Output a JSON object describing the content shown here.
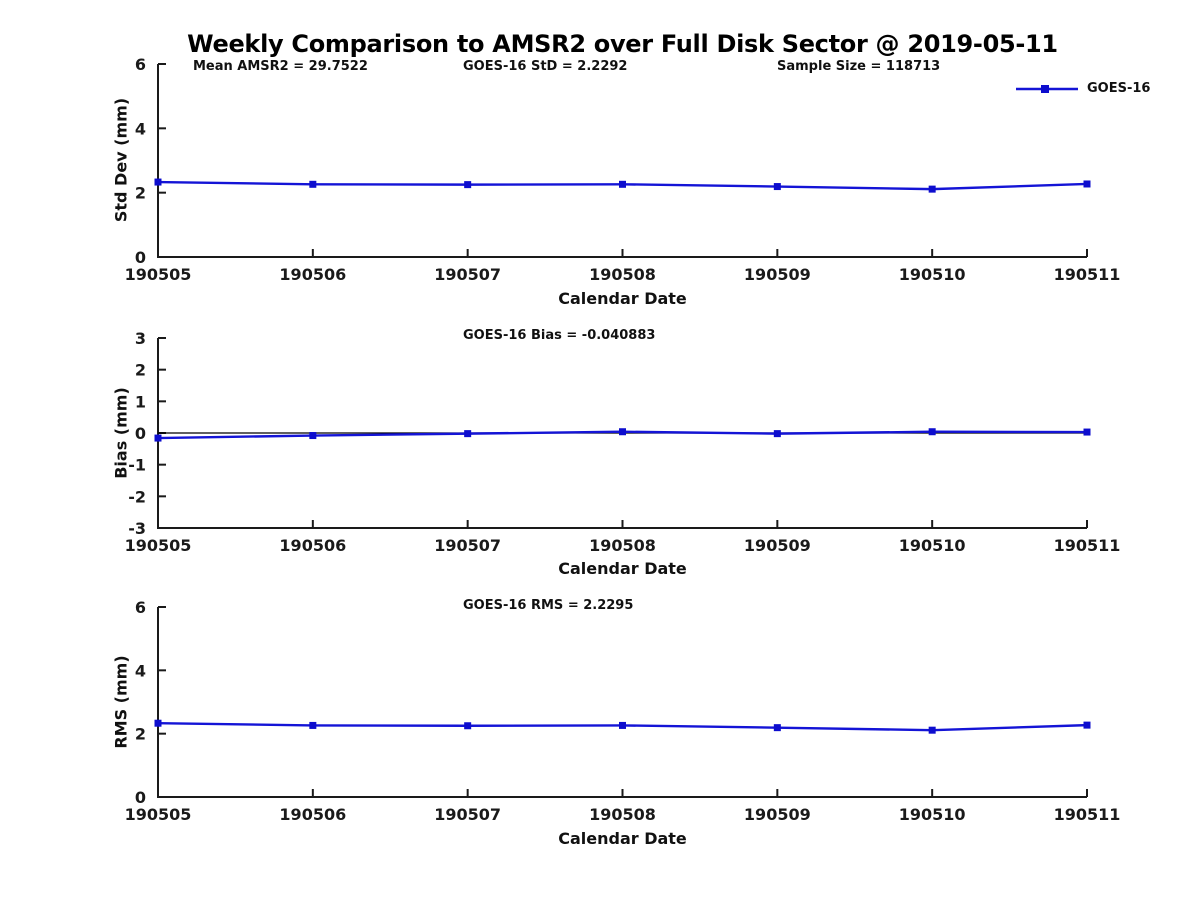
{
  "title": "Weekly Comparison to AMSR2 over Full Disk Sector @ 2019-05-11",
  "colors": {
    "line": "#1414D6",
    "marker": "#0D0DCE",
    "axis": "#1a1a1a",
    "text": "#111111",
    "zero_line": "#000000",
    "background": "#ffffff"
  },
  "legend": {
    "label": "GOES-16",
    "position": "top-right"
  },
  "chart_data": [
    {
      "type": "line",
      "title": "Weekly Comparison to AMSR2 over Full Disk Sector @ 2019-05-11",
      "annotations": [
        "Mean AMSR2 = 29.7522",
        "GOES-16 StD = 2.2292",
        "Sample Size = 118713"
      ],
      "categories": [
        "190505",
        "190506",
        "190507",
        "190508",
        "190509",
        "190510",
        "190511"
      ],
      "series": [
        {
          "name": "GOES-16",
          "values": [
            2.33,
            2.26,
            2.25,
            2.26,
            2.19,
            2.11,
            2.27
          ]
        }
      ],
      "xlabel": "Calendar Date",
      "ylabel": "Std Dev (mm)",
      "ylim": [
        0,
        6
      ],
      "yticks": [
        0,
        2,
        4,
        6
      ],
      "grid": false,
      "zero_line": false,
      "legend_label": "GOES-16"
    },
    {
      "type": "line",
      "subtitle": "GOES-16 Bias  = -0.040883",
      "categories": [
        "190505",
        "190506",
        "190507",
        "190508",
        "190509",
        "190510",
        "190511"
      ],
      "series": [
        {
          "name": "GOES-16",
          "values": [
            -0.16,
            -0.08,
            -0.02,
            0.04,
            -0.02,
            0.04,
            0.03
          ]
        }
      ],
      "xlabel": "Calendar Date",
      "ylabel": "Bias (mm)",
      "ylim": [
        -3,
        3
      ],
      "yticks": [
        -3,
        -2,
        -1,
        0,
        1,
        2,
        3
      ],
      "grid": false,
      "zero_line": true
    },
    {
      "type": "line",
      "subtitle": "GOES-16 RMS = 2.2295",
      "categories": [
        "190505",
        "190506",
        "190507",
        "190508",
        "190509",
        "190510",
        "190511"
      ],
      "series": [
        {
          "name": "GOES-16",
          "values": [
            2.33,
            2.26,
            2.25,
            2.26,
            2.19,
            2.11,
            2.27
          ]
        }
      ],
      "xlabel": "Calendar Date",
      "ylabel": "RMS (mm)",
      "ylim": [
        0,
        6
      ],
      "yticks": [
        0,
        2,
        4,
        6
      ],
      "grid": false,
      "zero_line": false
    }
  ]
}
